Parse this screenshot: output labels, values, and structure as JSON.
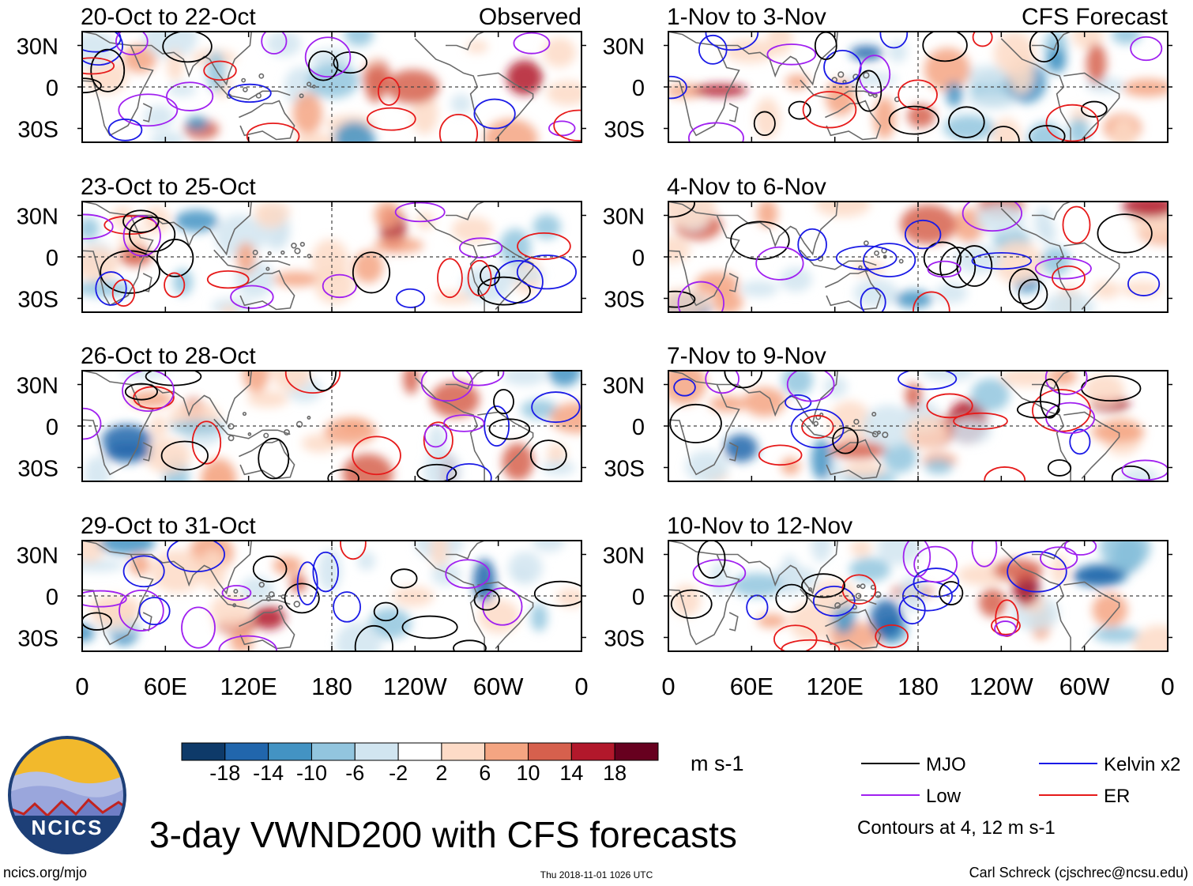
{
  "chart_data": {
    "type": "heatmap",
    "title": "3-day VWND200 with CFS forecasts",
    "variable": "VWND200",
    "units": "m s-1",
    "colorbar": {
      "tick_labels": [
        "-18",
        "-14",
        "-10",
        "-6",
        "-2",
        "2",
        "6",
        "10",
        "14",
        "18"
      ],
      "colors": [
        "#0e3a69",
        "#2166ac",
        "#4393c3",
        "#92c5de",
        "#d1e5f0",
        "#ffffff",
        "#fddbc7",
        "#f4a582",
        "#d6604d",
        "#b2182b",
        "#67001f"
      ]
    },
    "lat_labels": [
      "30N",
      "0",
      "30S"
    ],
    "lon_labels": [
      "0",
      "60E",
      "120E",
      "180",
      "120W",
      "60W",
      "0"
    ],
    "columns": {
      "observed": {
        "label": "Observed",
        "panels": [
          "20-Oct to 22-Oct",
          "23-Oct to 25-Oct",
          "26-Oct to 28-Oct",
          "29-Oct to 31-Oct"
        ]
      },
      "forecast": {
        "label": "CFS Forecast",
        "panels": [
          "1-Nov to 3-Nov",
          "4-Nov to 6-Nov",
          "7-Nov to 9-Nov",
          "10-Nov to 12-Nov"
        ]
      }
    },
    "legend": [
      {
        "name": "MJO",
        "color": "#000000"
      },
      {
        "name": "Kelvin x2",
        "color": "#1a1ae6"
      },
      {
        "name": "Low",
        "color": "#a020f0"
      },
      {
        "name": "ER",
        "color": "#e61a1a"
      }
    ],
    "contour_note": "Contours at 4, 12 m s-1"
  },
  "footer": {
    "left": "ncics.org/mjo",
    "center": "Thu 2018-11-01 1026 UTC",
    "right": "Carl Schreck (cjschrec@ncsu.edu)"
  },
  "logo": {
    "text": "NCICS",
    "colors": {
      "sky": "#f2b92c",
      "ring": "#1d3f77",
      "hills": "#7f8fcf",
      "ridge": "#c2231f"
    }
  }
}
